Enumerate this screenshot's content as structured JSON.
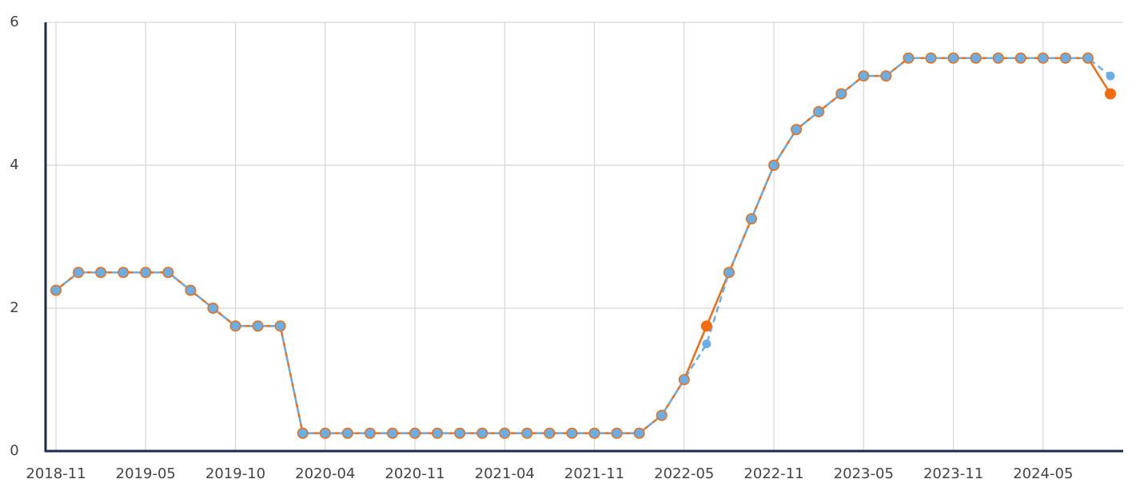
{
  "chart_data": {
    "type": "line",
    "categories": [
      "2018-11",
      null,
      null,
      null,
      "2019-05",
      null,
      null,
      null,
      "2019-10",
      null,
      null,
      null,
      "2020-04",
      null,
      null,
      null,
      "2020-11",
      null,
      null,
      null,
      "2021-04",
      null,
      null,
      null,
      "2021-11",
      null,
      null,
      null,
      "2022-05",
      null,
      null,
      null,
      "2022-11",
      null,
      null,
      null,
      "2023-05",
      null,
      null,
      null,
      "2023-11",
      null,
      null,
      null,
      "2024-05",
      null,
      null,
      null
    ],
    "series": [
      {
        "color": "#f26b0f",
        "dashed": false,
        "values": [
          2.25,
          2.5,
          2.5,
          2.5,
          2.5,
          2.5,
          2.25,
          2.0,
          1.75,
          1.75,
          1.75,
          0.25,
          0.25,
          0.25,
          0.25,
          0.25,
          0.25,
          0.25,
          0.25,
          0.25,
          0.25,
          0.25,
          0.25,
          0.25,
          0.25,
          0.25,
          0.25,
          0.5,
          1.0,
          1.75,
          2.5,
          3.25,
          4.0,
          4.5,
          4.75,
          5.0,
          5.25,
          5.25,
          5.5,
          5.5,
          5.5,
          5.5,
          5.5,
          5.5,
          5.5,
          5.5,
          5.5,
          5.0
        ]
      },
      {
        "color": "#6aaee6",
        "dashed": true,
        "values": [
          2.25,
          2.5,
          2.5,
          2.5,
          2.5,
          2.5,
          2.25,
          2.0,
          1.75,
          1.75,
          1.75,
          0.25,
          0.25,
          0.25,
          0.25,
          0.25,
          0.25,
          0.25,
          0.25,
          0.25,
          0.25,
          0.25,
          0.25,
          0.25,
          0.25,
          0.25,
          0.25,
          0.5,
          1.0,
          1.5,
          2.5,
          3.25,
          4.0,
          4.5,
          4.75,
          5.0,
          5.25,
          5.25,
          5.5,
          5.5,
          5.5,
          5.5,
          5.5,
          5.5,
          5.5,
          5.5,
          5.5,
          5.25
        ]
      }
    ],
    "ylim": [
      0,
      6
    ],
    "yticks": [
      0,
      2,
      4,
      6
    ],
    "grid": true
  }
}
